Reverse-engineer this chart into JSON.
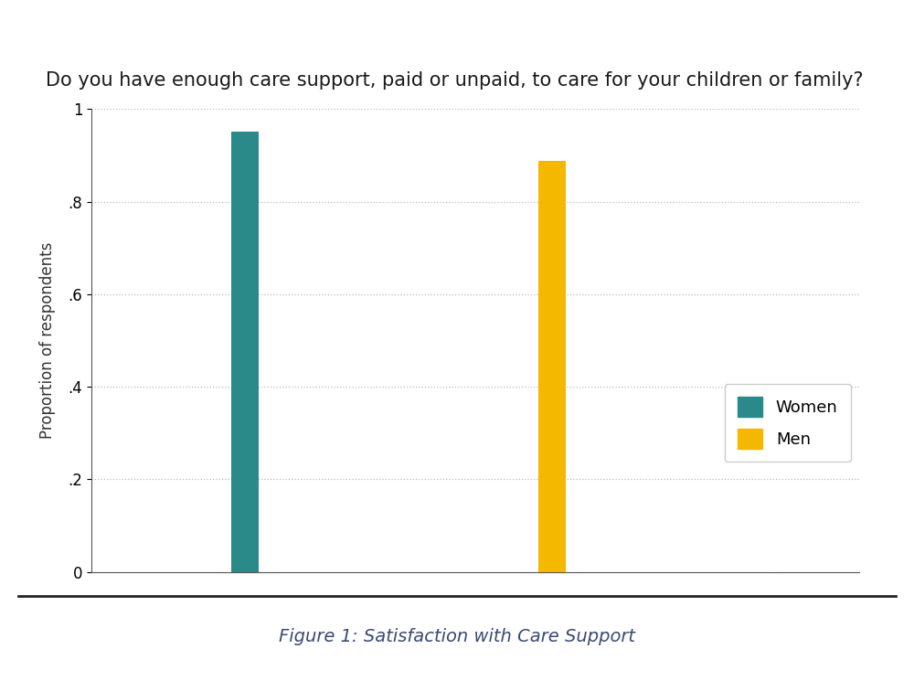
{
  "title": "Do you have enough care support, paid or unpaid, to care for your children or family?",
  "caption": "Figure 1: Satisfaction with Care Support",
  "categories": [
    "Women",
    "Men"
  ],
  "values": [
    0.951,
    0.887
  ],
  "colors": [
    "#2a8a8a",
    "#f5b800"
  ],
  "ylabel": "Proportion of respondents",
  "ylim": [
    0,
    1.0
  ],
  "yticks": [
    0,
    0.2,
    0.4,
    0.6,
    0.8,
    1.0
  ],
  "ytick_labels": [
    "0",
    ".2",
    ".4",
    ".6",
    ".8",
    "1"
  ],
  "bar_width": 0.18,
  "bar_positions": [
    1,
    3
  ],
  "xlim": [
    0,
    5
  ],
  "title_fontsize": 15,
  "caption_fontsize": 14,
  "ylabel_fontsize": 12,
  "legend_fontsize": 13,
  "tick_fontsize": 12,
  "background_color": "#ffffff",
  "caption_color": "#3a4a72",
  "title_color": "#1a1a1a",
  "footer_line_color": "#222222",
  "grid_color": "#bbbbbb",
  "spine_color": "#555555"
}
